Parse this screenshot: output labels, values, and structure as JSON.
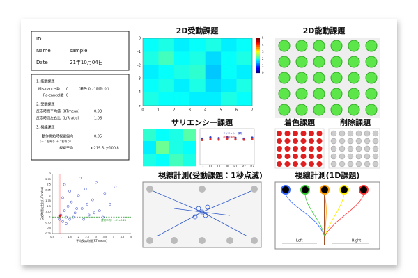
{
  "id_box": {
    "id_label": "ID",
    "name_label": "Name",
    "name": "sample",
    "date_label": "Date",
    "date": "21年10月04日"
  },
  "summary": {
    "s1_title": "1. 能動課題",
    "miscancel_label": "Mis-cancel数",
    "miscancel": 0,
    "miscancel_detail": "（着色 0 ／ 削除 0 ）",
    "recancel_label": "Re-cancel数",
    "recancel": 0,
    "s2_title": "2. 受動課題",
    "rt_label": "反応時間平均値（RTmean）",
    "rt": 0.93,
    "lr_label": "反応時間左右比（L/Rratio）",
    "lr": 1.06,
    "s3_title": "3. 視線課題",
    "bias_label": "動作開始時視線偏向",
    "bias": 0.05,
    "bias_note": "（－：左寄り ＋：右寄り）",
    "gaze_label": "視線平均",
    "gaze": "x:219.6, y:100.8"
  },
  "passive_2d": {
    "title": "2D受動課題",
    "xlim": [
      0,
      7
    ],
    "ylim": [
      -5,
      0
    ],
    "xticks": [
      0,
      1,
      2,
      3,
      4,
      5,
      6,
      7
    ],
    "yticks": [
      0,
      -1,
      -2,
      -3,
      -4,
      -5
    ],
    "values": [
      [
        1.9,
        2.0,
        1.8,
        1.9,
        2.0,
        1.8,
        1.9
      ],
      [
        2.0,
        2.2,
        1.9,
        2.0,
        1.7,
        1.9,
        2.0
      ],
      [
        1.8,
        1.9,
        2.0,
        2.1,
        1.6,
        1.9,
        1.8
      ],
      [
        1.9,
        2.0,
        1.8,
        2.0,
        1.7,
        1.8,
        2.0
      ],
      [
        2.0,
        1.9,
        1.9,
        1.8,
        1.8,
        2.0,
        1.9
      ]
    ],
    "colorbar_lim": [
      0,
      5
    ],
    "colorbar_ticks": [
      0,
      1,
      2,
      3,
      4,
      5
    ]
  },
  "active_2d": {
    "title": "2D能動課題"
  },
  "saliency": {
    "title": "サリエンシー課題",
    "heatmap": [
      [
        2.1,
        1.9,
        2.0,
        2.3
      ],
      [
        1.8,
        2.4,
        2.0,
        1.9
      ],
      [
        2.0,
        1.9,
        2.2,
        2.0
      ]
    ],
    "categories": [
      "L3",
      "L2",
      "L1",
      "M",
      "R1",
      "R2",
      "R3"
    ],
    "ylim": [
      0,
      1.2
    ],
    "series": [
      {
        "name": "サリエンシー課題",
        "color": "#2b3fc9",
        "values": [
          0.9,
          0.95,
          0.92,
          0.96,
          0.93,
          0.9,
          0.94
        ]
      },
      {
        "name": "非刺激課題",
        "color": "#e03030",
        "values": [
          0.85,
          0.88,
          0.86,
          0.9,
          0.87,
          0.86,
          0.88
        ]
      }
    ]
  },
  "coloring": {
    "title": "着色課題"
  },
  "deletion": {
    "title": "削除課題"
  },
  "scatter": {
    "xlabel": "平均反応時間(RT mean)",
    "ylabel": "反応時間左右比(L/R ratio)",
    "xlim": [
      0.5,
      5
    ],
    "ylim": [
      0.25,
      3
    ],
    "xticks": [
      0.5,
      1,
      1.5,
      2,
      2.5,
      3,
      3.5,
      4,
      4.5,
      5
    ],
    "yticks": [
      0.25,
      0.5,
      0.75,
      1,
      1.25,
      1.5,
      1.75,
      2,
      2.25,
      2.5,
      2.75,
      3
    ],
    "x": [
      0.9,
      1.0,
      1.1,
      1.2,
      1.3,
      1.4,
      1.5,
      1.6,
      1.8,
      2.0,
      2.2,
      2.4,
      2.6,
      2.8,
      3.0,
      3.2,
      3.5,
      3.8,
      4.1,
      1.1,
      1.3,
      1.7,
      2.1,
      2.5,
      2.9,
      1.5,
      1.9,
      2.3,
      3.4,
      1.2
    ],
    "y": [
      0.9,
      1.1,
      0.8,
      1.3,
      1.0,
      1.5,
      0.9,
      1.7,
      1.2,
      2.0,
      1.4,
      2.3,
      1.1,
      1.8,
      2.6,
      1.3,
      2.1,
      1.6,
      2.4,
      1.9,
      0.7,
      1.0,
      2.8,
      1.6,
      1.2,
      2.2,
      1.4,
      0.9,
      1.0,
      2.5
    ],
    "norm": 1.01,
    "norm_label": "健常平均：1.01±0.24"
  },
  "gaze_passive": {
    "title": "視線計測(受動課題：1秒点滅)"
  },
  "gaze_1d": {
    "title": "視線計測(1D課題)",
    "left": "Left",
    "right": "Right"
  }
}
